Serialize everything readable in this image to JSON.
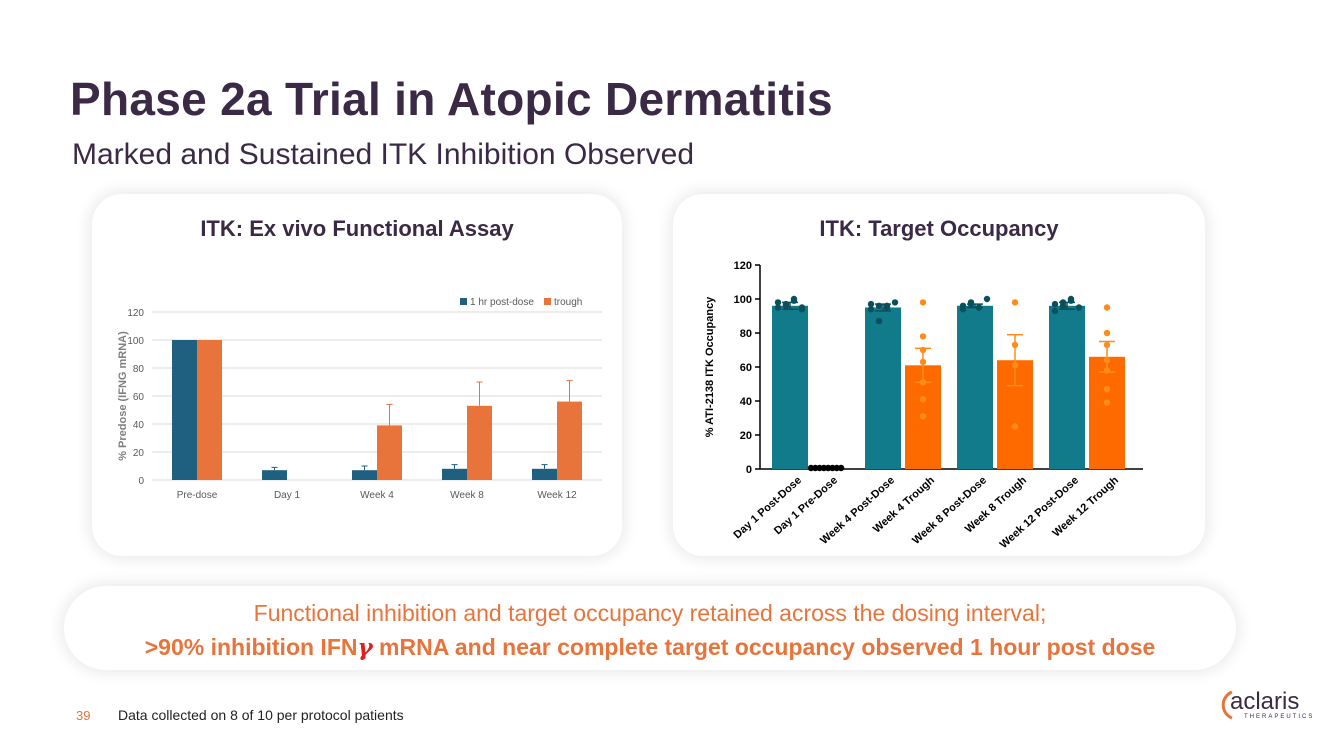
{
  "slide": {
    "title": "Phase 2a Trial in Atopic Dermatitis",
    "subtitle": "Marked and Sustained ITK Inhibition Observed",
    "banner_line1": "Functional inhibition and target occupancy retained across the dosing interval;",
    "banner_line2_pre": ">90% inhibition IFN",
    "banner_line2_gamma": "γ",
    "banner_line2_post": " mRNA and near complete target occupancy observed 1 hour post dose",
    "page_number": "39",
    "footnote": "Data collected on 8 of 10 per protocol patients",
    "logo_text": "aclaris",
    "logo_sub": "THERAPEUTICS"
  },
  "colors": {
    "title": "#3b2a45",
    "accent_orange": "#e8743b",
    "left_dose": "#1f5f80",
    "left_trough": "#e8743b",
    "right_dose": "#117a8b",
    "right_trough": "#ff6a00"
  },
  "chart_data": [
    {
      "type": "bar",
      "title": "ITK: Ex vivo Functional Assay",
      "ylabel": "% Predose (IFNG mRNA)",
      "xlabel": "",
      "categories": [
        "Pre-dose",
        "Day 1",
        "Week 4",
        "Week 8",
        "Week 12"
      ],
      "yticks": [
        "0",
        "20",
        "40",
        "60",
        "80",
        "100",
        "120"
      ],
      "ylim": [
        0,
        120
      ],
      "grid": true,
      "legend": "top-right",
      "series": [
        {
          "name": "1 hr post-dose",
          "values": [
            100,
            7,
            7,
            8,
            8
          ],
          "errors": [
            0,
            2,
            3,
            3,
            3
          ]
        },
        {
          "name": "trough",
          "values": [
            100,
            null,
            39,
            53,
            56
          ],
          "errors": [
            0,
            0,
            15,
            17,
            15
          ]
        }
      ]
    },
    {
      "type": "bar",
      "title": "ITK: Target Occupancy",
      "ylabel": "% ATI-2138 ITK Occupancy",
      "xlabel": "",
      "categories": [
        "Day 1 Post-Dose",
        "Day 1 Pre-Dose",
        "Week 4 Post-Dose",
        "Week 4 Trough",
        "Week 8 Post-Dose",
        "Week 8 Trough",
        "Week 12 Post-Dose",
        "Week 12 Trough"
      ],
      "yticks": [
        "0",
        "20",
        "40",
        "60",
        "80",
        "100",
        "120"
      ],
      "ylim": [
        0,
        120
      ],
      "grid": false,
      "values": [
        96,
        0,
        95,
        61,
        96,
        64,
        96,
        66
      ],
      "errors": [
        2,
        0,
        2,
        10,
        1,
        15,
        2,
        9
      ],
      "kinds": [
        "dose",
        "trough",
        "dose",
        "trough",
        "dose",
        "trough",
        "dose",
        "trough"
      ],
      "points": [
        [
          95,
          97,
          99,
          94,
          98,
          96,
          100,
          95
        ],
        [
          0,
          0,
          0,
          0,
          0,
          0,
          0,
          0
        ],
        [
          97,
          96,
          95,
          98,
          94,
          87,
          96
        ],
        [
          98,
          78,
          70,
          63,
          51,
          41,
          31
        ],
        [
          96,
          97,
          95,
          100,
          94,
          98,
          95
        ],
        [
          98,
          73,
          61,
          25
        ],
        [
          97,
          96,
          99,
          95,
          93,
          98,
          100
        ],
        [
          95,
          80,
          73,
          64,
          58,
          47,
          39
        ]
      ]
    }
  ]
}
